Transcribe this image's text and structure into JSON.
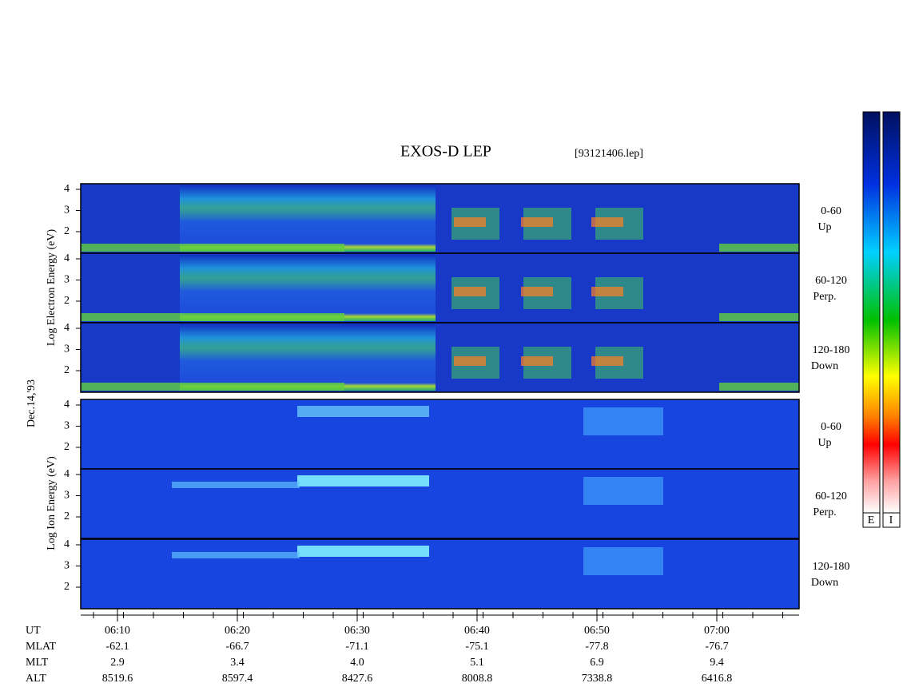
{
  "title": "EXOS-D LEP",
  "file": "[93121406.lep]",
  "date": "Dec.14,'93",
  "electron_axis_label": "Log Electron Energy (eV)",
  "ion_axis_label": "Log Ion Energy (eV)",
  "panel_ticks": [
    "4",
    "3",
    "2"
  ],
  "panels": [
    {
      "angle": "0-60",
      "direction": "Up"
    },
    {
      "angle": "60-120",
      "direction": "Perp."
    },
    {
      "angle": "120-180",
      "direction": "Down"
    }
  ],
  "colorbar_labels": [
    "E",
    "I"
  ],
  "ephemeris": [
    {
      "label": "UT",
      "values": [
        "06:10",
        "06:20",
        "06:30",
        "06:40",
        "06:50",
        "07:00"
      ]
    },
    {
      "label": "MLAT",
      "values": [
        "-62.1",
        "-66.7",
        "-71.1",
        "-75.1",
        "-77.8",
        "-76.7"
      ]
    },
    {
      "label": "MLT",
      "values": [
        "2.9",
        "3.4",
        "4.0",
        "5.1",
        "6.9",
        "9.4"
      ]
    },
    {
      "label": "ALT",
      "values": [
        "8519.6",
        "8597.4",
        "8427.6",
        "8008.8",
        "7338.8",
        "6416.8"
      ]
    }
  ]
}
